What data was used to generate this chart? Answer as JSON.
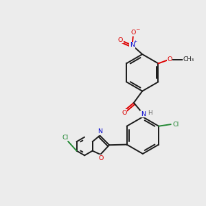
{
  "bg": "#ececec",
  "bc": "#1a1a1a",
  "colors": {
    "O": "#dd0000",
    "N": "#0000cc",
    "Cl": "#228833",
    "C": "#1a1a1a",
    "H": "#666666"
  },
  "lw": 1.4,
  "fs": 6.8
}
